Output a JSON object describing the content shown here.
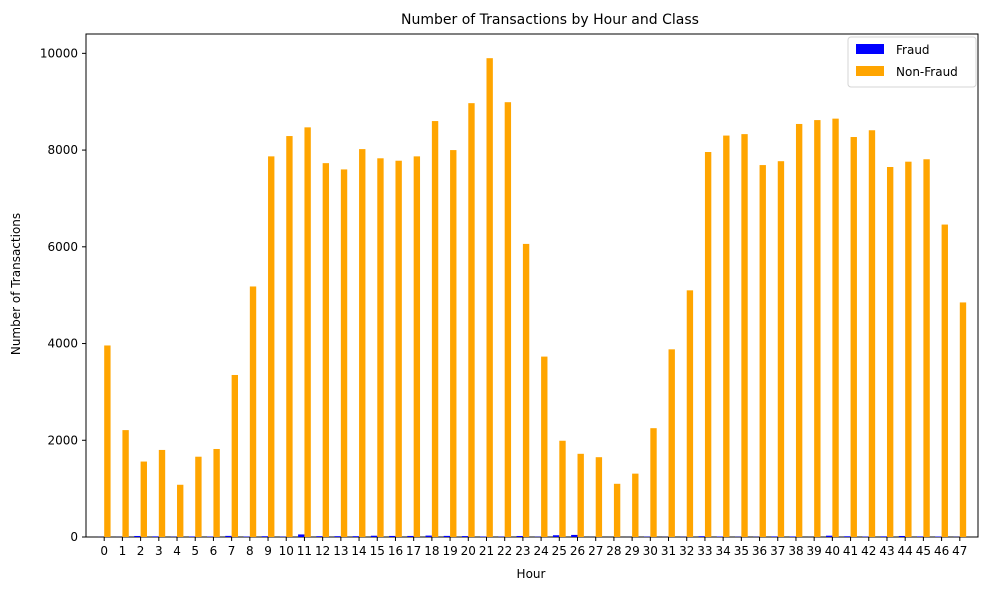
{
  "chart_data": {
    "type": "bar",
    "title": "Number of Transactions by Hour and Class",
    "xlabel": "Hour",
    "ylabel": "Number of Transactions",
    "ylim": [
      0,
      10400
    ],
    "yticks": [
      0,
      2000,
      4000,
      6000,
      8000,
      10000
    ],
    "grid": false,
    "legend_position": "top-right",
    "categories": [
      "0",
      "1",
      "2",
      "3",
      "4",
      "5",
      "6",
      "7",
      "8",
      "9",
      "10",
      "11",
      "12",
      "13",
      "14",
      "15",
      "16",
      "17",
      "18",
      "19",
      "20",
      "21",
      "22",
      "23",
      "24",
      "25",
      "26",
      "27",
      "28",
      "29",
      "30",
      "31",
      "32",
      "33",
      "34",
      "35",
      "36",
      "37",
      "38",
      "39",
      "40",
      "41",
      "42",
      "43",
      "44",
      "45",
      "46",
      "47"
    ],
    "series": [
      {
        "name": "Fraud",
        "color": "#0000ff",
        "values": [
          2,
          2,
          21,
          13,
          6,
          11,
          9,
          23,
          9,
          16,
          8,
          53,
          17,
          17,
          17,
          26,
          22,
          22,
          29,
          23,
          19,
          10,
          8,
          21,
          6,
          36,
          43,
          2,
          1,
          1,
          7,
          3,
          5,
          16,
          10,
          5,
          5,
          12,
          11,
          2,
          27,
          15,
          9,
          13,
          21,
          12,
          10,
          4
        ]
      },
      {
        "name": "Non-Fraud",
        "color": "#ffa500",
        "values": [
          3960,
          2210,
          1560,
          1800,
          1080,
          1660,
          1820,
          3350,
          5180,
          7870,
          8290,
          8470,
          7730,
          7600,
          8020,
          7830,
          7780,
          7870,
          8600,
          8000,
          8970,
          9900,
          8990,
          6060,
          3730,
          1990,
          1720,
          1650,
          1100,
          1310,
          2250,
          3880,
          5100,
          7960,
          8300,
          8330,
          7690,
          7770,
          8540,
          8620,
          8650,
          8270,
          8410,
          7650,
          7760,
          7810,
          6460,
          4850
        ]
      }
    ]
  }
}
